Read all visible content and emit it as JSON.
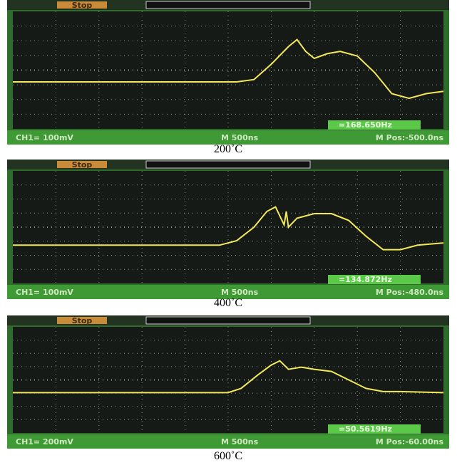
{
  "panels": [
    {
      "stop": "Stop",
      "channel": "CH1= 100mV",
      "timebase": "M 500ns",
      "frequency": "=168.650Hz",
      "position": "M Pos:-500.0ns",
      "caption": "200˚C"
    },
    {
      "stop": "Stop",
      "channel": "CH1= 100mV",
      "timebase": "M 500ns",
      "frequency": "=134.872Hz",
      "position": "M Pos:-480.0ns",
      "caption": "400˚C"
    },
    {
      "stop": "Stop",
      "channel": "CH1= 200mV",
      "timebase": "M 500ns",
      "frequency": "=50.5619Hz",
      "position": "M Pos:-60.00ns",
      "caption": "600˚C"
    }
  ]
}
